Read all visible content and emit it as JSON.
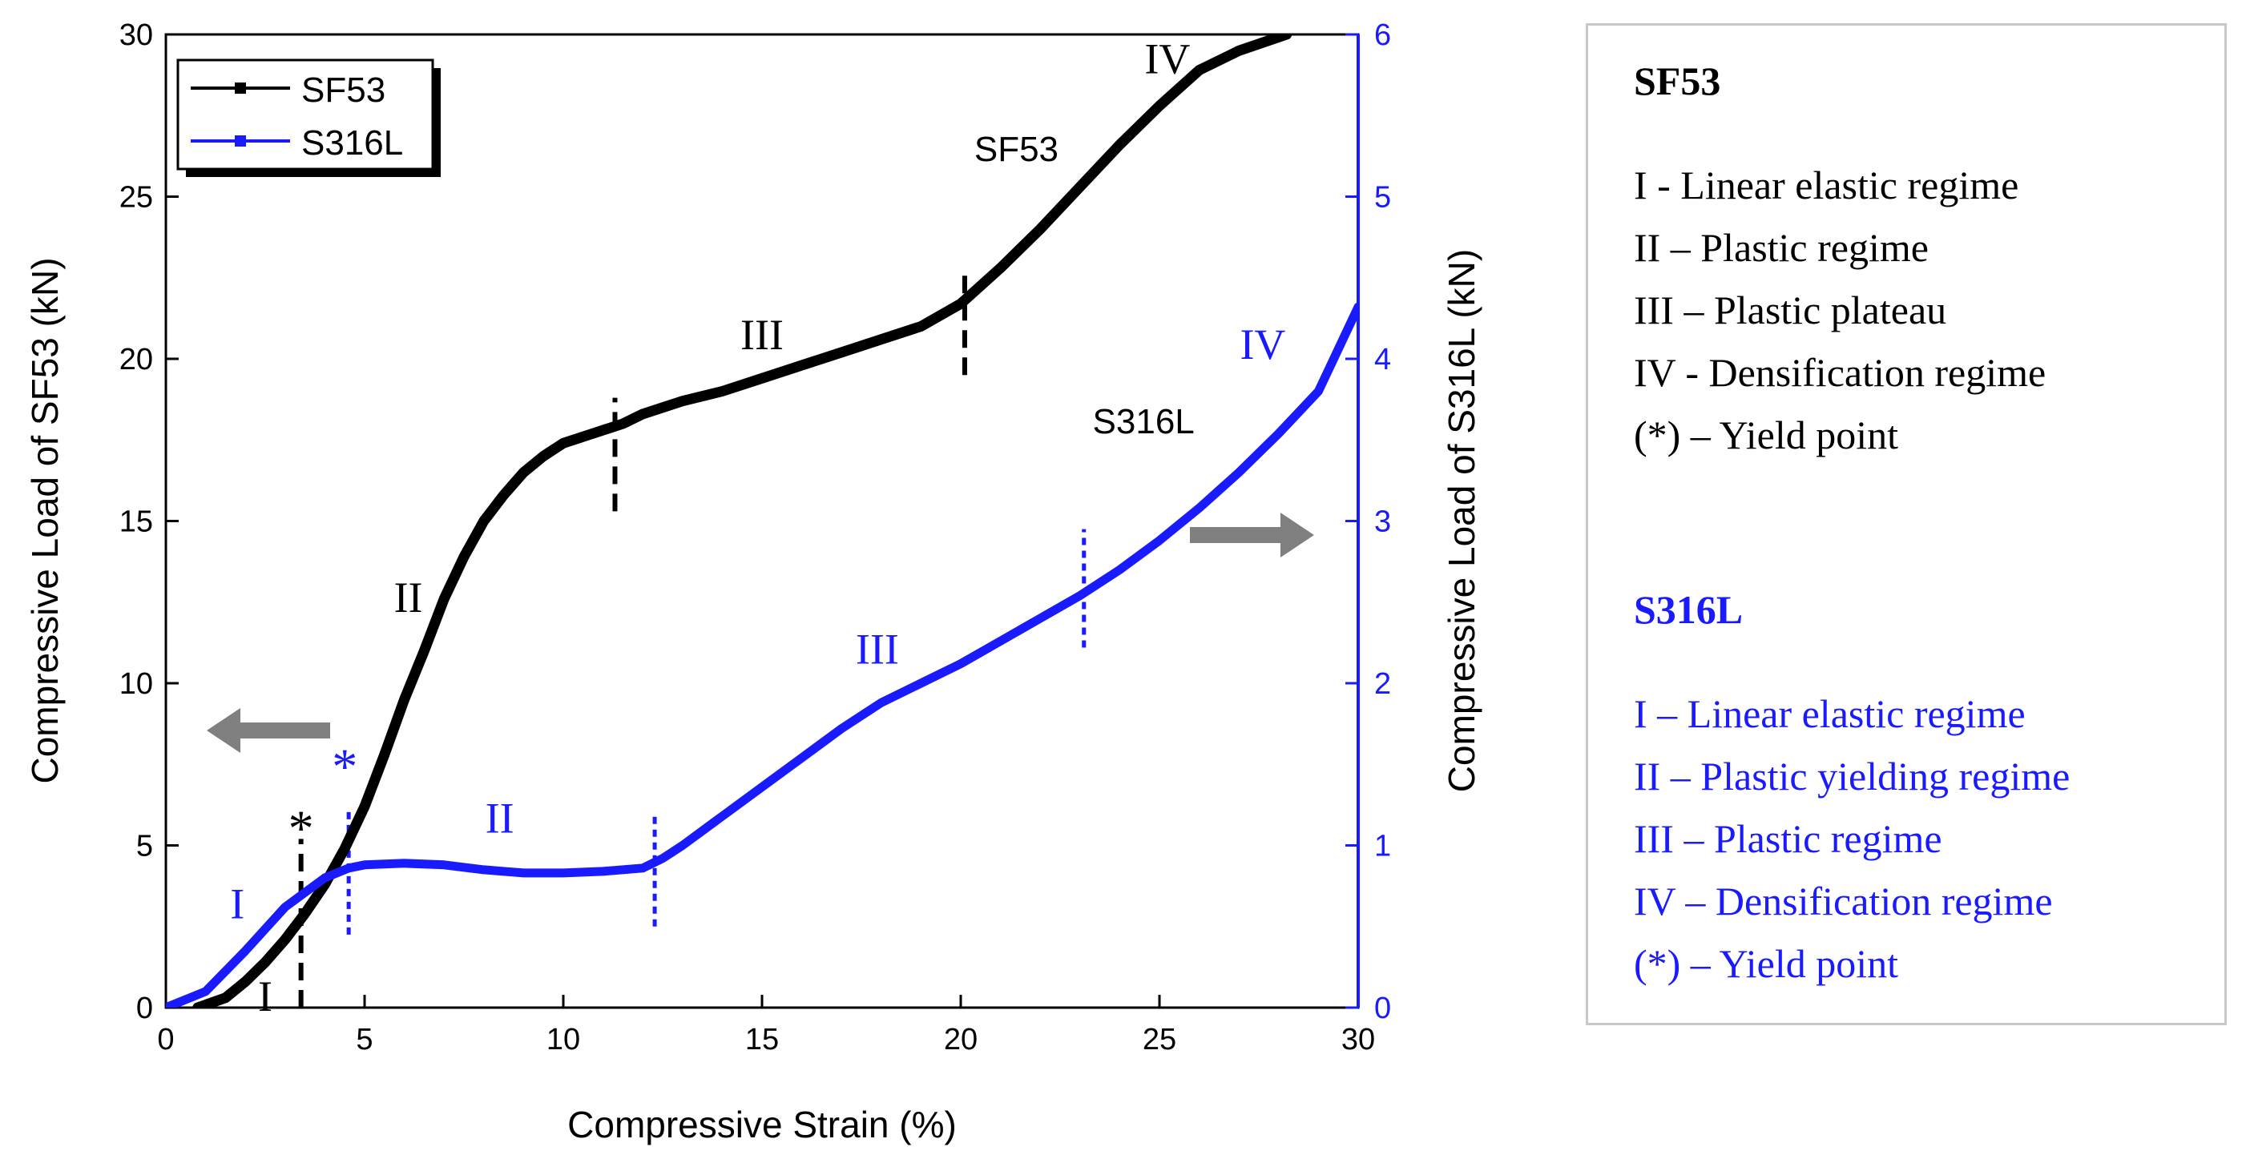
{
  "chart_data": {
    "type": "line",
    "xlabel": "Compressive Strain (%)",
    "ylabel_left": "Compressive Load of SF53 (kN)",
    "ylabel_right": "Compressive Load of S316L (kN)",
    "xlim": [
      0,
      30
    ],
    "ylim_left": [
      0,
      30
    ],
    "ylim_right": [
      0,
      6
    ],
    "x_ticks": [
      0,
      5,
      10,
      15,
      20,
      25,
      30
    ],
    "y_left_ticks": [
      0,
      5,
      10,
      15,
      20,
      25,
      30
    ],
    "y_right_ticks": [
      0,
      1,
      2,
      3,
      4,
      5,
      6
    ],
    "legend": {
      "position": "top-left",
      "entries": [
        "SF53",
        "S316L"
      ]
    },
    "series": [
      {
        "name": "SF53",
        "axis": "left",
        "color": "#000000",
        "x": [
          0.8,
          1.5,
          2,
          2.5,
          3,
          3.5,
          4,
          4.5,
          5,
          5.5,
          6,
          6.5,
          7,
          7.5,
          8,
          8.5,
          9,
          9.5,
          10,
          10.5,
          11,
          11.5,
          12,
          13,
          14,
          15,
          16,
          17,
          18,
          19,
          20,
          21,
          22,
          23,
          24,
          25,
          26,
          27,
          28.2
        ],
        "y": [
          0,
          0.3,
          0.8,
          1.4,
          2.1,
          2.9,
          3.8,
          4.9,
          6.2,
          7.8,
          9.5,
          11,
          12.6,
          13.9,
          15.0,
          15.8,
          16.5,
          17.0,
          17.4,
          17.6,
          17.8,
          18.0,
          18.3,
          18.7,
          19.0,
          19.4,
          19.8,
          20.2,
          20.6,
          21.0,
          21.7,
          22.8,
          24.0,
          25.3,
          26.6,
          27.8,
          28.9,
          29.5,
          30
        ]
      },
      {
        "name": "S316L",
        "axis": "right",
        "color": "#1a1aff",
        "x": [
          0,
          1,
          2,
          3,
          4,
          4.6,
          5,
          6,
          7,
          8,
          9,
          10,
          11,
          12,
          12.5,
          13,
          14,
          15,
          16,
          17,
          18,
          19,
          20,
          21,
          22,
          23,
          24,
          25,
          26,
          27,
          28,
          29,
          30
        ],
        "y": [
          0,
          0.1,
          0.35,
          0.62,
          0.8,
          0.86,
          0.88,
          0.89,
          0.88,
          0.85,
          0.83,
          0.83,
          0.84,
          0.86,
          0.92,
          1.0,
          1.18,
          1.36,
          1.54,
          1.72,
          1.88,
          2.0,
          2.12,
          2.26,
          2.4,
          2.54,
          2.7,
          2.88,
          3.08,
          3.3,
          3.54,
          3.8,
          4.32
        ]
      }
    ],
    "boundaries": [
      {
        "series": "SF53",
        "x": 3.4,
        "y_from": 0,
        "y_to": 5.2,
        "style": "dashed"
      },
      {
        "series": "SF53",
        "x": 11.3,
        "y_from": 15.3,
        "y_to": 18.8,
        "style": "dashed"
      },
      {
        "series": "SF53",
        "x": 20.1,
        "y_from": 19.5,
        "y_to": 22.6,
        "style": "dashed"
      },
      {
        "series": "S316L",
        "x": 4.6,
        "y_from": 0.45,
        "y_to": 1.22,
        "style": "dotted"
      },
      {
        "series": "S316L",
        "x": 12.3,
        "y_from": 0.5,
        "y_to": 1.2,
        "style": "dotted"
      },
      {
        "series": "S316L",
        "x": 23.1,
        "y_from": 2.22,
        "y_to": 2.95,
        "style": "dotted"
      }
    ],
    "annotations": [
      {
        "text": "I",
        "series": "SF53",
        "x": 2.5,
        "y": -0.1
      },
      {
        "text": "II",
        "series": "SF53",
        "x": 6.1,
        "y": 12.2
      },
      {
        "text": "III",
        "series": "SF53",
        "x": 15.0,
        "y": 20.3
      },
      {
        "text": "IV",
        "series": "SF53",
        "x": 25.2,
        "y": 28.8
      },
      {
        "text": "*",
        "series": "SF53",
        "x": 3.4,
        "y": 5.0
      },
      {
        "text": "SF53",
        "series": "SF53",
        "x": 21.4,
        "y": 26.1
      },
      {
        "text": "S316L",
        "series": "SF53",
        "x": 24.6,
        "y": 17.7
      },
      {
        "text": "I",
        "series": "S316L",
        "x": 1.8,
        "y": 0.55
      },
      {
        "text": "II",
        "series": "S316L",
        "x": 8.4,
        "y": 1.08
      },
      {
        "text": "III",
        "series": "S316L",
        "x": 17.9,
        "y": 2.12
      },
      {
        "text": "IV",
        "series": "S316L",
        "x": 27.6,
        "y": 4.0
      },
      {
        "text": "*",
        "series": "S316L",
        "x": 4.5,
        "y": 1.38
      }
    ]
  },
  "legend_panel": {
    "sf53": {
      "title": "SF53",
      "items": [
        "I - Linear  elastic regime",
        "II – Plastic regime",
        "III – Plastic plateau",
        "IV - Densification  regime",
        "(*) – Yield point"
      ]
    },
    "s316l": {
      "title": "S316L",
      "items": [
        "I – Linear  elastic regime",
        "II – Plastic  yielding  regime",
        "III – Plastic regime",
        "IV – Densification  regime",
        "(*) – Yield point"
      ]
    }
  },
  "colors": {
    "sf53": "#000000",
    "s316l": "#1a1aff",
    "arrow": "#808080"
  }
}
